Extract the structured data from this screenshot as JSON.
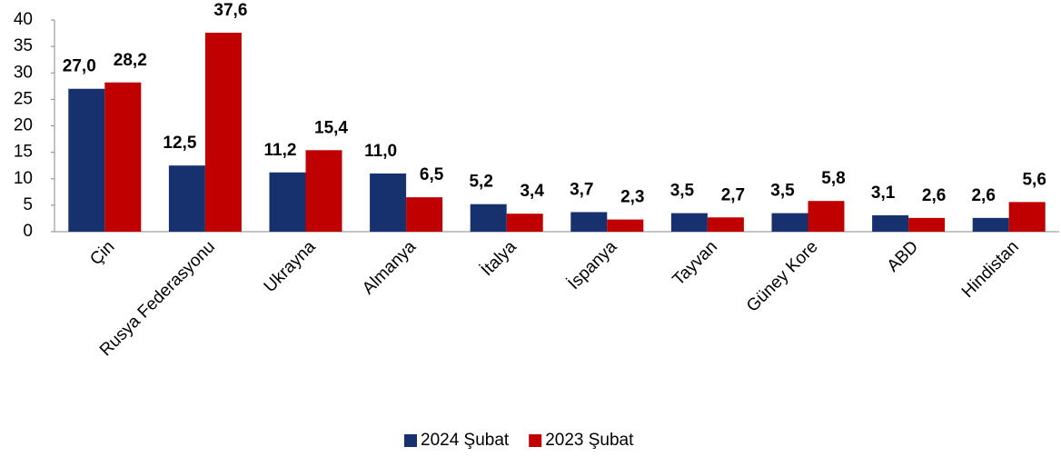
{
  "chart_data": {
    "type": "bar",
    "categories": [
      "Çin",
      "Rusya Federasyonu",
      "Ukrayna",
      "Almanya",
      "İtalya",
      "İspanya",
      "Tayvan",
      "Güney Kore",
      "ABD",
      "Hindistan"
    ],
    "series": [
      {
        "name": "2024 Şubat",
        "color": "#17306e",
        "values": [
          27.0,
          12.5,
          11.2,
          11.0,
          5.2,
          3.7,
          3.5,
          3.5,
          3.1,
          2.6
        ],
        "value_labels": [
          "27,0",
          "12,5",
          "11,2",
          "11,0",
          "5,2",
          "3,7",
          "3,5",
          "3,5",
          "3,1",
          "2,6"
        ]
      },
      {
        "name": "2023 Şubat",
        "color": "#c00000",
        "values": [
          28.2,
          37.6,
          15.4,
          6.5,
          3.4,
          2.3,
          2.7,
          5.8,
          2.6,
          5.6
        ],
        "value_labels": [
          "28,2",
          "37,6",
          "15,4",
          "6,5",
          "3,4",
          "2,3",
          "2,7",
          "5,8",
          "2,6",
          "5,6"
        ]
      }
    ],
    "ylim": [
      0,
      40
    ],
    "yticks": [
      0,
      5,
      10,
      15,
      20,
      25,
      30,
      35,
      40
    ],
    "grid": false,
    "legend": "bottom"
  }
}
